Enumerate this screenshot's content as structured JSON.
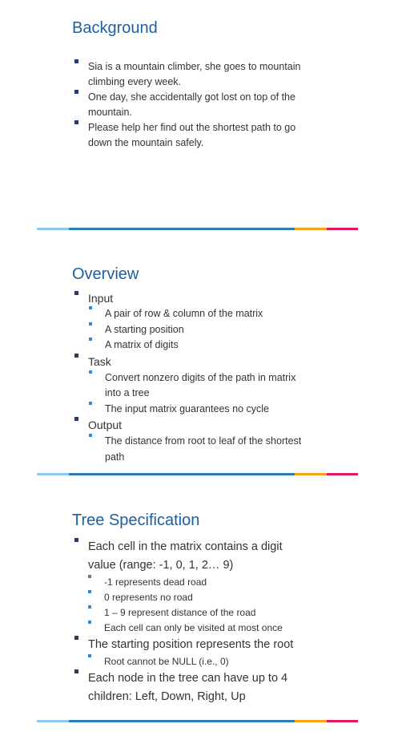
{
  "slide1": {
    "title": "Background",
    "bullets": [
      [
        "Sia is a mountain climber, she goes to mountain",
        "climbing every week."
      ],
      [
        "One day, she accidentally got lost on top of the",
        "mountain."
      ],
      [
        "Please help her find out the shortest path to go",
        "down the mountain safely."
      ]
    ]
  },
  "slide2": {
    "title": "Overview",
    "input_label": "Input",
    "input_items": [
      "A pair of row & column of the matrix",
      "A starting position",
      "A matrix of digits"
    ],
    "task_label": "Task",
    "task_items": [
      [
        "Convert nonzero digits of the path in matrix",
        "into a tree"
      ],
      [
        "The input matrix guarantees no cycle"
      ]
    ],
    "output_label": "Output",
    "output_items": [
      [
        "The distance from root to leaf of the shortest",
        "path"
      ]
    ]
  },
  "slide3": {
    "title": "Tree Specification",
    "cell_lines": [
      "Each cell in the matrix contains a digit",
      "value (range: -1, 0, 1, 2… 9)"
    ],
    "cell_items": [
      "-1 represents dead road",
      "0 represents no road",
      "1 – 9 represent distance of the road",
      "Each cell can only be visited at most once"
    ],
    "root_label": "The starting position represents the root",
    "root_items": [
      "Root cannot be NULL (i.e., 0)"
    ],
    "node_lines": [
      "Each node in the tree can have up to 4",
      "children: Left, Down, Right, Up"
    ]
  },
  "colors": {
    "title": "#1f5fa0",
    "divider_segments": [
      "#8fc9ee",
      "#2a7dbd",
      "#f7a21b",
      "#e0195c"
    ]
  }
}
